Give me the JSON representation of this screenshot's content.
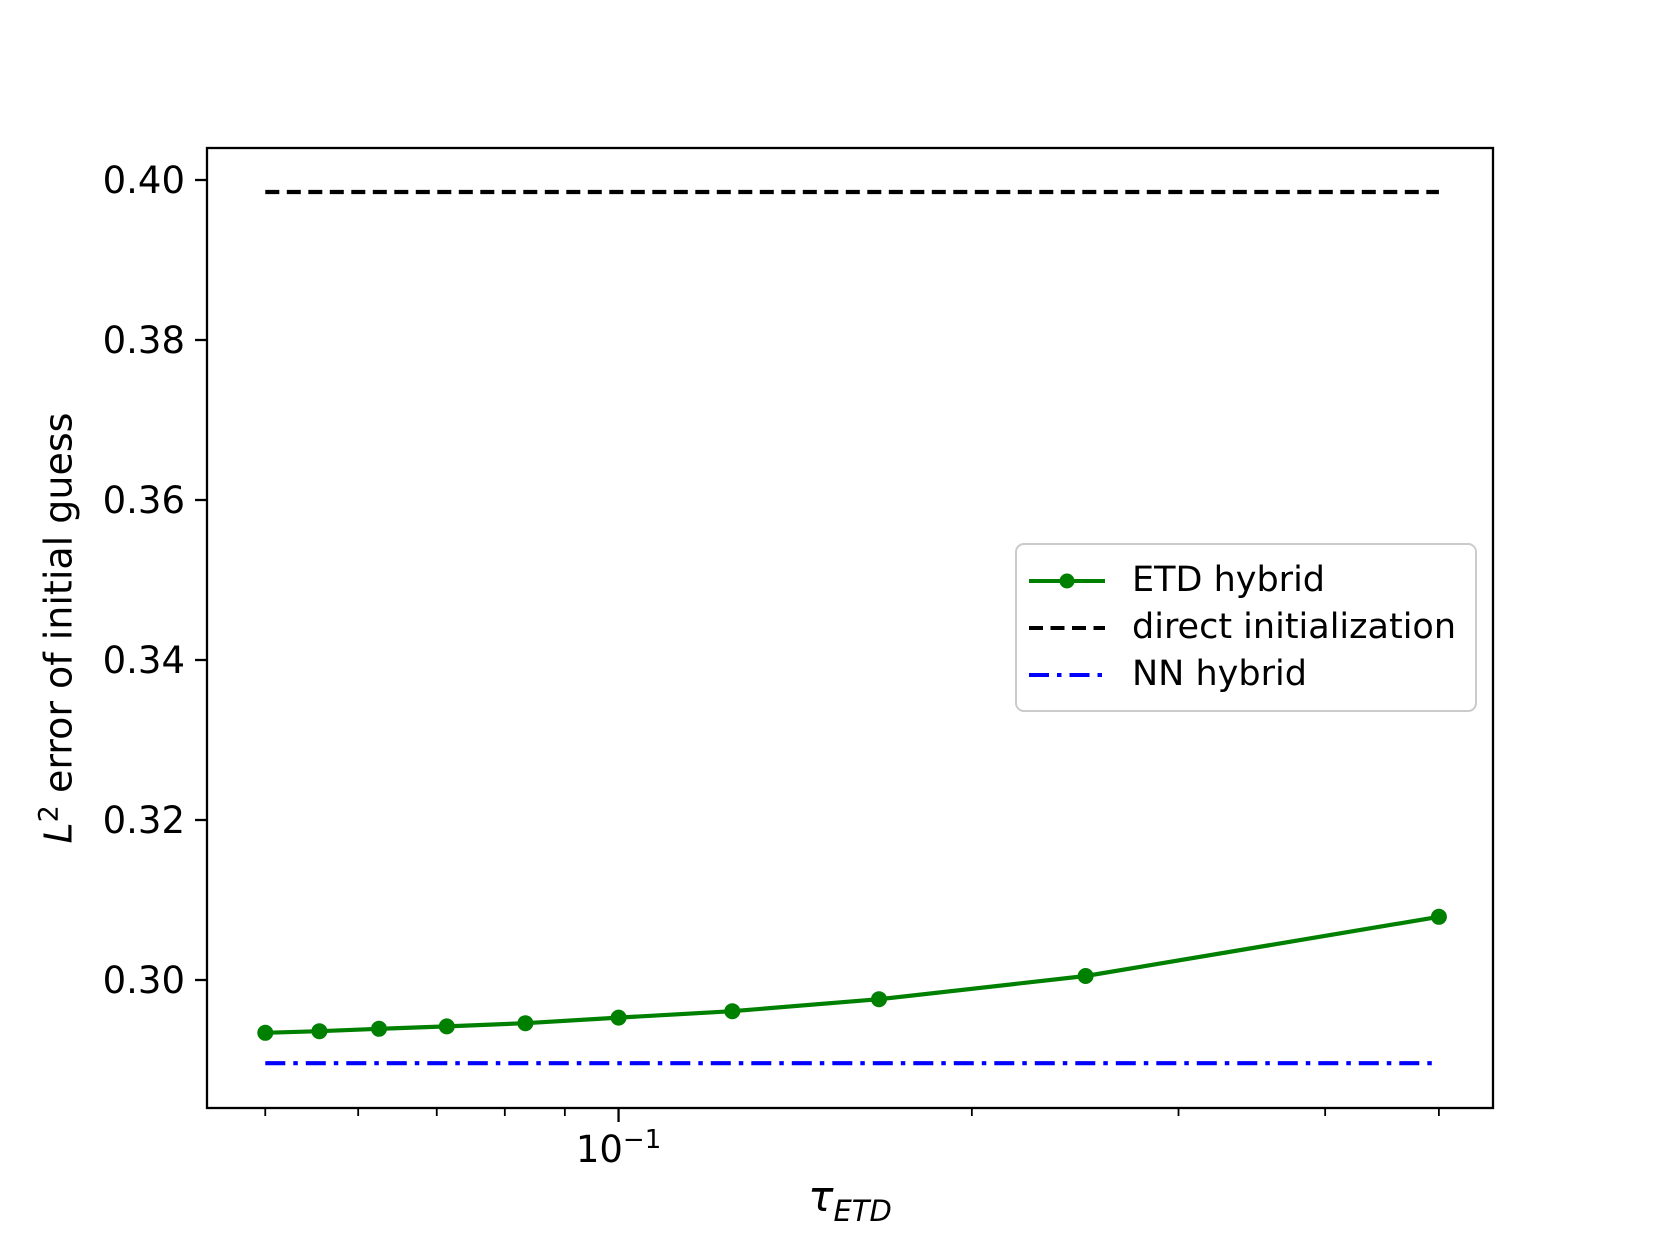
{
  "chart_data": {
    "type": "line",
    "x_scale": "log",
    "title": "",
    "xlabel": {
      "base": "τ",
      "sub": "ETD"
    },
    "ylabel": {
      "italic": "L",
      "sup": "2",
      "rest": " error of initial guess"
    },
    "xlim": [
      0.0446,
      0.556
    ],
    "ylim": [
      0.284,
      0.404
    ],
    "grid": "off",
    "x_major_ticks": [
      {
        "value": 0.1,
        "base": "10",
        "exp": "−1"
      }
    ],
    "x_minor_ticks": [
      0.05,
      0.06,
      0.07,
      0.08,
      0.09,
      0.2,
      0.3,
      0.4,
      0.5
    ],
    "y_ticks": [
      {
        "value": 0.3,
        "label": "0.30"
      },
      {
        "value": 0.32,
        "label": "0.32"
      },
      {
        "value": 0.34,
        "label": "0.34"
      },
      {
        "value": 0.36,
        "label": "0.36"
      },
      {
        "value": 0.38,
        "label": "0.38"
      },
      {
        "value": 0.4,
        "label": "0.40"
      }
    ],
    "series": [
      {
        "name": "ETD hybrid",
        "color": "#008000",
        "line_style": "solid",
        "marker": "circle",
        "x": [
          0.05,
          0.0556,
          0.0625,
          0.0714,
          0.0833,
          0.1,
          0.125,
          0.1667,
          0.25,
          0.5
        ],
        "y": [
          0.2934,
          0.2936,
          0.2939,
          0.2942,
          0.2946,
          0.2953,
          0.2961,
          0.2976,
          0.3005,
          0.3079
        ]
      },
      {
        "name": "direct initialization",
        "color": "#000000",
        "line_style": "dashed",
        "marker": "none",
        "x": [
          0.05,
          0.5
        ],
        "y": [
          0.3985,
          0.3985
        ]
      },
      {
        "name": "NN hybrid",
        "color": "#0000ff",
        "line_style": "dashdot",
        "marker": "none",
        "x": [
          0.05,
          0.5
        ],
        "y": [
          0.2896,
          0.2896
        ]
      }
    ],
    "legend": {
      "position": "center-right",
      "entries": [
        "ETD hybrid",
        "direct initialization",
        "NN hybrid"
      ]
    }
  }
}
